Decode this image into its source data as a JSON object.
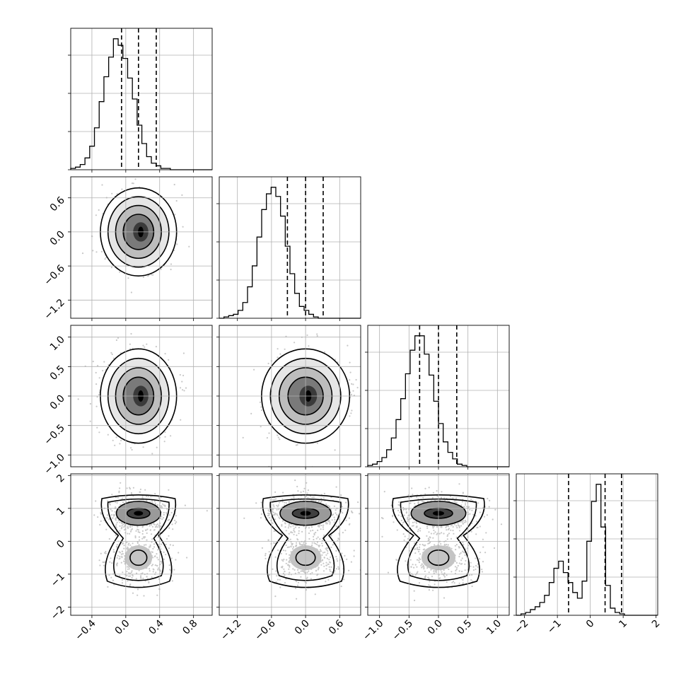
{
  "chart_data": {
    "type": "corner",
    "title": "",
    "n_params": 4,
    "colors": {
      "line": "#000000",
      "grid": "#b0b0b0",
      "points": "#c8c8c8",
      "density_dark": "#000000"
    },
    "grid": true,
    "parameters": [
      {
        "index": 0,
        "range": [
          -0.65,
          1.02
        ],
        "ticks": [
          -0.4,
          0.0,
          0.4,
          0.8
        ],
        "tick_labels": [
          "−0.4",
          "0.0",
          "0.4",
          "0.8"
        ],
        "quantiles": [
          -0.05,
          0.15,
          0.36
        ],
        "histogram": {
          "bin_width": 0.056,
          "start": -0.65,
          "counts": [
            1,
            2,
            4,
            9,
            18,
            32,
            52,
            71,
            86,
            100,
            95,
            85,
            70,
            54,
            34,
            20,
            10,
            5,
            3,
            1,
            1,
            0,
            0,
            0,
            0,
            0,
            0,
            0,
            0,
            0
          ]
        },
        "contour_center": [
          0.15,
          0.0
        ]
      },
      {
        "index": 1,
        "range": [
          -1.52,
          0.97
        ],
        "ticks": [
          -1.2,
          -0.6,
          0.0,
          0.6
        ],
        "tick_labels": [
          "−1.2",
          "−0.6",
          "0.0",
          "0.6"
        ],
        "quantiles": [
          -0.32,
          0.0,
          0.31
        ],
        "histogram": {
          "bin_width": 0.083,
          "start": -1.52,
          "counts": [
            0,
            1,
            2,
            3,
            6,
            12,
            24,
            40,
            62,
            83,
            95,
            100,
            93,
            78,
            55,
            34,
            19,
            9,
            6,
            3,
            1,
            0,
            0,
            0,
            0,
            0,
            0,
            0,
            0,
            0
          ]
        }
      },
      {
        "index": 2,
        "range": [
          -1.2,
          1.2
        ],
        "ticks": [
          -1.0,
          -0.5,
          0.0,
          0.5,
          1.0
        ],
        "tick_labels": [
          "−1.0",
          "−0.5",
          "0.0",
          "0.5",
          "1.0"
        ],
        "quantiles": [
          -0.32,
          0.0,
          0.31
        ],
        "histogram": {
          "bin_width": 0.08,
          "start": -1.2,
          "counts": [
            1,
            2,
            4,
            7,
            13,
            22,
            36,
            52,
            71,
            89,
            100,
            100,
            86,
            70,
            50,
            33,
            19,
            11,
            6,
            2,
            1,
            0,
            0,
            0,
            0,
            0,
            0,
            0,
            0,
            0
          ]
        }
      },
      {
        "index": 3,
        "range": [
          -2.25,
          2.05
        ],
        "ticks": [
          -2,
          -1,
          0,
          1,
          2
        ],
        "tick_labels": [
          "−2",
          "−1",
          "0",
          "1",
          "2"
        ],
        "quantiles": [
          -0.66,
          0.45,
          0.95
        ],
        "histogram": {
          "bin_width": 0.143,
          "start": -2.25,
          "counts": [
            0,
            1,
            2,
            4,
            6,
            9,
            14,
            23,
            33,
            38,
            30,
            23,
            16,
            12,
            24,
            52,
            80,
            92,
            62,
            21,
            5,
            2,
            1,
            0,
            0,
            0,
            0,
            0,
            0,
            0
          ]
        },
        "modes": [
          0.85,
          -0.5
        ]
      }
    ]
  }
}
